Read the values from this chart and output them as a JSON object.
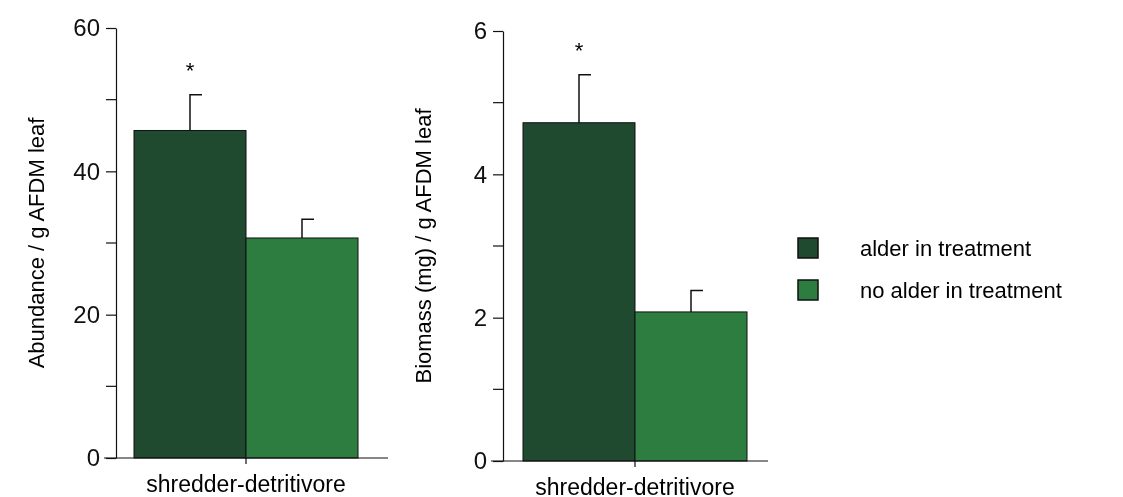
{
  "chart_data": [
    {
      "type": "bar",
      "ylabel": "Abundance / g AFDM leaf",
      "categories": [
        "shredder-detritivore"
      ],
      "series": [
        {
          "color": "#1f4a30",
          "values": [
            45.7
          ],
          "errors": [
            5.0
          ]
        },
        {
          "color": "#2e7d40",
          "values": [
            30.7
          ],
          "errors": [
            2.6
          ]
        }
      ],
      "ylim": [
        0,
        60
      ],
      "yticks": [
        0,
        20,
        40,
        60
      ],
      "annotations": [
        "*"
      ],
      "legend": false
    },
    {
      "type": "bar",
      "ylabel": "Biomass (mg) / g AFDM leaf",
      "categories": [
        "shredder-detritivore"
      ],
      "series": [
        {
          "name": "alder in treatment",
          "color": "#1f4a30",
          "values": [
            4.72
          ],
          "errors": [
            0.67
          ]
        },
        {
          "name": "no alder in treatment",
          "color": "#2e7d40",
          "values": [
            2.08
          ],
          "errors": [
            0.3
          ]
        }
      ],
      "ylim": [
        0,
        6
      ],
      "yticks": [
        0,
        2,
        4,
        6
      ],
      "annotations": [
        "*"
      ],
      "legend": "right"
    }
  ]
}
